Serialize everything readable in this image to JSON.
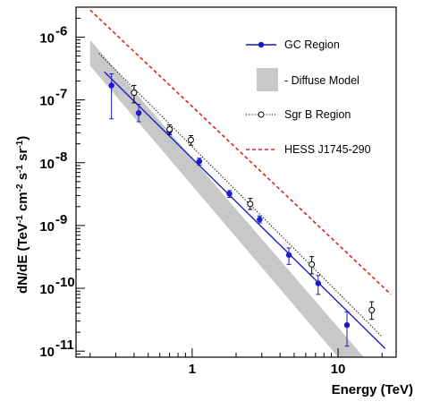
{
  "chart_data": {
    "type": "scatter",
    "title": "",
    "xlabel": "Energy (TeV)",
    "ylabel_parts": {
      "prefix": "dN/dE (TeV",
      "sup1": "-1",
      "cm": " cm",
      "sup2": "-2",
      "s": " s",
      "sup3": "-1",
      "sr": " sr",
      "sup4": "-1",
      "suffix": ")"
    },
    "x_scale": "log",
    "y_scale": "log",
    "xlim": [
      0.16,
      25
    ],
    "ylim": [
      8e-12,
      3e-06
    ],
    "x_tick_labels": [
      {
        "value": 1,
        "label": "1"
      },
      {
        "value": 10,
        "label": "10"
      }
    ],
    "y_tick_labels": [
      {
        "value": 1e-11,
        "base": "10",
        "exp": "-11"
      },
      {
        "value": 1e-10,
        "base": "10",
        "exp": "-10"
      },
      {
        "value": 1e-09,
        "base": "10",
        "exp": "-9"
      },
      {
        "value": 1e-08,
        "base": "10",
        "exp": "-8"
      },
      {
        "value": 1e-07,
        "base": "10",
        "exp": "-7"
      },
      {
        "value": 1e-06,
        "base": "10",
        "exp": "-6"
      }
    ],
    "grid": false,
    "legend_position": "top-right",
    "colors": {
      "gc": "#1a1acc",
      "diffuse": "#c8c8c8",
      "sgrb": "#000000",
      "hess": "#dd2222"
    },
    "series": [
      {
        "name": "GC Region",
        "kind": "points-with-fit",
        "points": [
          {
            "x": 0.28,
            "y": 1.7e-07,
            "ylo": 5e-08,
            "yhi": 2.6e-07
          },
          {
            "x": 0.43,
            "y": 6.2e-08,
            "ylo": 4.5e-08,
            "yhi": 8.5e-08
          },
          {
            "x": 0.7,
            "y": 3.2e-08,
            "ylo": 2.8e-08,
            "yhi": 3.7e-08
          },
          {
            "x": 1.12,
            "y": 1.05e-08,
            "ylo": 9.2e-09,
            "yhi": 1.18e-08
          },
          {
            "x": 1.8,
            "y": 3.2e-09,
            "ylo": 2.8e-09,
            "yhi": 3.6e-09
          },
          {
            "x": 2.9,
            "y": 1.25e-09,
            "ylo": 1.1e-09,
            "yhi": 1.42e-09
          },
          {
            "x": 4.6,
            "y": 3.4e-10,
            "ylo": 2.4e-10,
            "yhi": 4.4e-10
          },
          {
            "x": 7.3,
            "y": 1.2e-10,
            "ylo": 8e-11,
            "yhi": 1.6e-10
          },
          {
            "x": 11.5,
            "y": 2.6e-11,
            "ylo": 1.2e-11,
            "yhi": 4.2e-11
          }
        ],
        "fit": [
          {
            "x": 0.25,
            "y": 2.8e-07
          },
          {
            "x": 21,
            "y": 1.1e-11
          }
        ]
      },
      {
        "name": "- Diffuse Model",
        "kind": "band",
        "band": {
          "upper": [
            {
              "x": 0.2,
              "y": 9e-07
            },
            {
              "x": 15,
              "y": 8e-12
            }
          ],
          "lower": [
            {
              "x": 0.2,
              "y": 3.5e-07
            },
            {
              "x": 10,
              "y": 8e-12
            }
          ]
        }
      },
      {
        "name": "Sgr B Region",
        "kind": "points-with-fit",
        "points": [
          {
            "x": 0.4,
            "y": 1.3e-07,
            "ylo": 9e-08,
            "yhi": 1.7e-07
          },
          {
            "x": 0.7,
            "y": 3.4e-08,
            "ylo": 2.8e-08,
            "yhi": 4e-08
          },
          {
            "x": 0.98,
            "y": 2.3e-08,
            "ylo": 1.9e-08,
            "yhi": 2.7e-08
          },
          {
            "x": 2.5,
            "y": 2.2e-09,
            "ylo": 1.8e-09,
            "yhi": 2.7e-09
          },
          {
            "x": 6.6,
            "y": 2.4e-10,
            "ylo": 1.7e-10,
            "yhi": 3.2e-10
          },
          {
            "x": 17,
            "y": 4.5e-11,
            "ylo": 3.2e-11,
            "yhi": 6.1e-11
          }
        ],
        "fit": [
          {
            "x": 0.23,
            "y": 5.5e-07
          },
          {
            "x": 20,
            "y": 1.7e-11
          }
        ]
      },
      {
        "name": "HESS J1745-290",
        "kind": "dashed-line",
        "fit": [
          {
            "x": 0.2,
            "y": 2.7e-06
          },
          {
            "x": 23,
            "y": 8e-11
          }
        ]
      }
    ]
  }
}
